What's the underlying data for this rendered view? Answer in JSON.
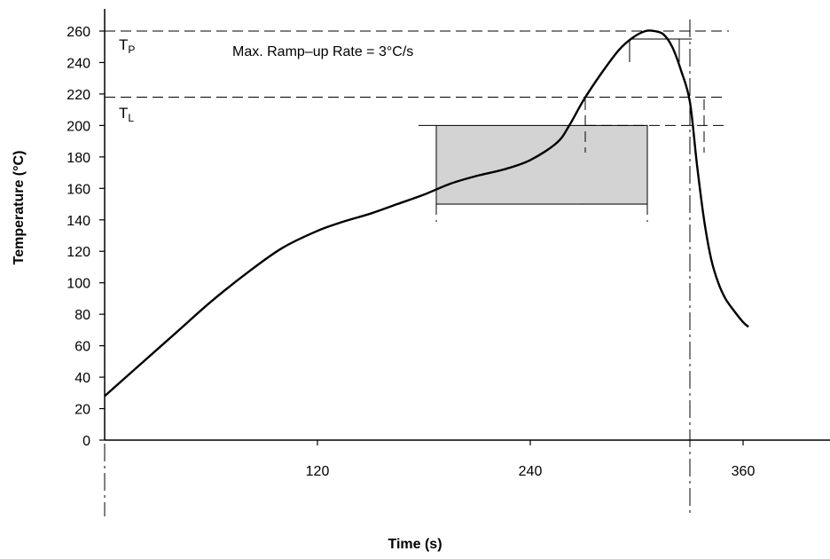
{
  "chart_data": {
    "type": "line",
    "xlabel": "Time (s)",
    "ylabel": "Temperature (°C)",
    "xlim": [
      0,
      405
    ],
    "ylim": [
      0,
      260
    ],
    "x_ticks": [
      120,
      240,
      360
    ],
    "y_ticks": [
      0,
      20,
      40,
      60,
      80,
      100,
      120,
      140,
      160,
      180,
      200,
      220,
      240,
      260
    ],
    "grid": false,
    "series": [
      {
        "x": [
          0,
          20,
          40,
          60,
          80,
          100,
          120,
          135,
          150,
          165,
          180,
          195,
          210,
          225,
          240,
          255,
          262,
          270,
          280,
          290,
          298,
          305,
          310,
          315,
          320,
          325,
          330,
          334,
          338,
          342,
          346,
          350,
          355,
          360,
          363
        ],
        "y": [
          28,
          48,
          68,
          88,
          106,
          122,
          133,
          139,
          144,
          150,
          156,
          163,
          168,
          172,
          178,
          189,
          200,
          216,
          233,
          248,
          256,
          260,
          260,
          258,
          250,
          235,
          215,
          175,
          140,
          115,
          100,
          90,
          82,
          75,
          72
        ]
      }
    ],
    "reference_lines": [
      {
        "label_main": "T",
        "label_sub": "P",
        "y": 260
      },
      {
        "label_main": "T",
        "label_sub": "L",
        "y": 218
      }
    ],
    "annotations": [
      {
        "text": "Max. Ramp–up Rate = 3°C/s"
      }
    ],
    "preheat_region": {
      "x_start": 187,
      "x_end": 306,
      "y_start": 150,
      "y_end": 200
    },
    "time_markers": [
      0,
      330
    ]
  }
}
